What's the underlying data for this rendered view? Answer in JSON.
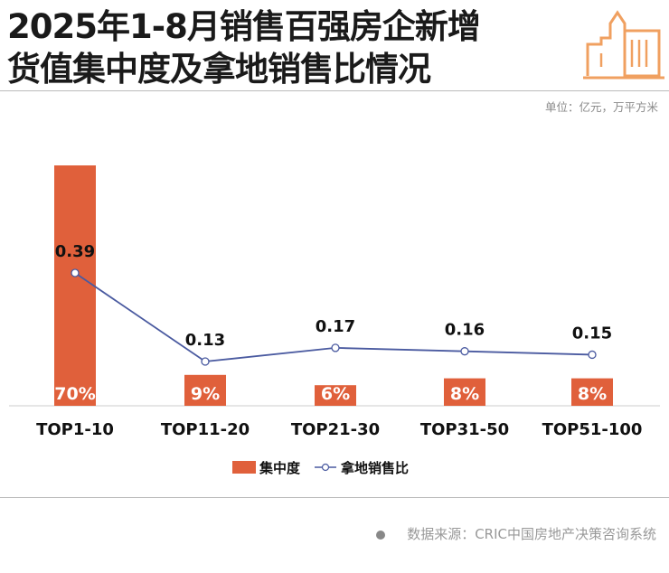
{
  "header": {
    "title_line1": "2025年1-8月销售百强房企新增",
    "title_line2": "货值集中度及拿地销售比情况",
    "unit": "单位：亿元，万平方米",
    "logo_icon": "building-icon"
  },
  "colors": {
    "bar": "#e0603b",
    "line": "#4a5aa0",
    "logo": "#f0a060"
  },
  "chart_data": {
    "type": "bar+line",
    "categories": [
      "TOP1-10",
      "TOP11-20",
      "TOP21-30",
      "TOP31-50",
      "TOP51-100"
    ],
    "series": [
      {
        "name": "集中度",
        "type": "bar",
        "values": [
          70,
          9,
          6,
          8,
          8
        ],
        "labels": [
          "70%",
          "9%",
          "6%",
          "8%",
          "8%"
        ]
      },
      {
        "name": "拿地销售比",
        "type": "line",
        "values": [
          0.39,
          0.13,
          0.17,
          0.16,
          0.15
        ],
        "labels": [
          "0.39",
          "0.13",
          "0.17",
          "0.16",
          "0.15"
        ]
      }
    ],
    "legend": "bottom-center"
  },
  "footer": {
    "source": "数据来源：CRIC中国房地产决策咨询系统"
  }
}
